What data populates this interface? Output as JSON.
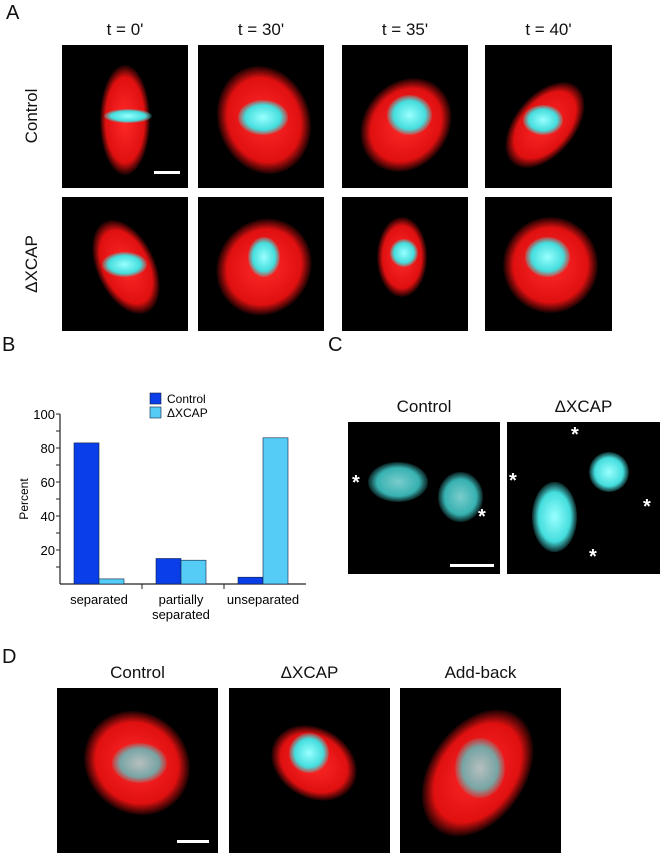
{
  "panels": {
    "A": {
      "label": "A",
      "columns": [
        "t = 0'",
        "t = 30'",
        "t = 35'",
        "t = 40'"
      ],
      "rows": [
        "Control",
        "ΔXCAP"
      ]
    },
    "B": {
      "label": "B"
    },
    "C": {
      "label": "C",
      "columns": [
        "Control",
        "ΔXCAP"
      ],
      "marker": "*"
    },
    "D": {
      "label": "D",
      "columns": [
        "Control",
        "ΔXCAP",
        "Add-back"
      ]
    }
  },
  "colors": {
    "control": "#0a3ee8",
    "dxcap": "#55ccf5",
    "spindle": "#e81010",
    "chromatin": "#5ee0e0"
  },
  "chart_data": {
    "type": "bar",
    "categories": [
      "separated",
      "partially separated",
      "unseparated"
    ],
    "series": [
      {
        "name": "Control",
        "values": [
          83,
          15,
          4
        ]
      },
      {
        "name": "ΔXCAP",
        "values": [
          3,
          14,
          86
        ]
      }
    ],
    "ylabel": "Percent",
    "ylim": [
      0,
      100
    ],
    "yticks": [
      20,
      40,
      60,
      80,
      100
    ],
    "legend": "top"
  }
}
